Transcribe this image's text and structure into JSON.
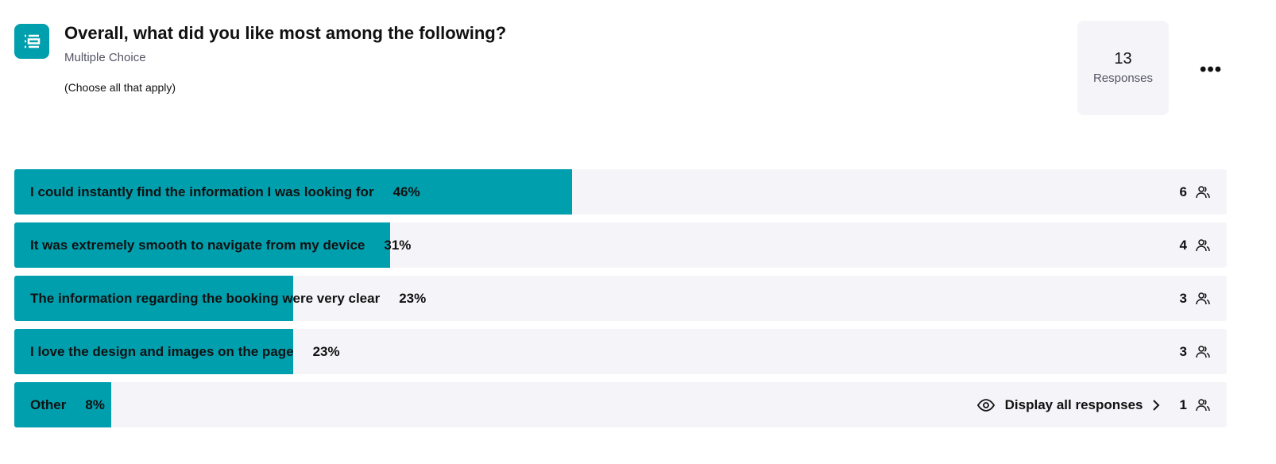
{
  "question": {
    "title": "Overall, what did you like most among the following?",
    "type": "Multiple Choice",
    "note": "(Choose all that apply)"
  },
  "responses": {
    "count": 13,
    "label": "Responses"
  },
  "chart_data": {
    "type": "bar",
    "orientation": "horizontal",
    "categories": [
      "I could instantly find the information I was looking for",
      "It was extremely smooth to navigate from my device",
      "The information regarding the booking were very clear",
      "I love the design and images on the page",
      "Other"
    ],
    "values": [
      46,
      31,
      23,
      23,
      8
    ],
    "value_labels": [
      "46%",
      "31%",
      "23%",
      "23%",
      "8%"
    ],
    "counts": [
      6,
      4,
      3,
      3,
      1
    ],
    "color": "#009fae",
    "xlim": [
      0,
      100
    ]
  },
  "display_all": "Display all responses"
}
